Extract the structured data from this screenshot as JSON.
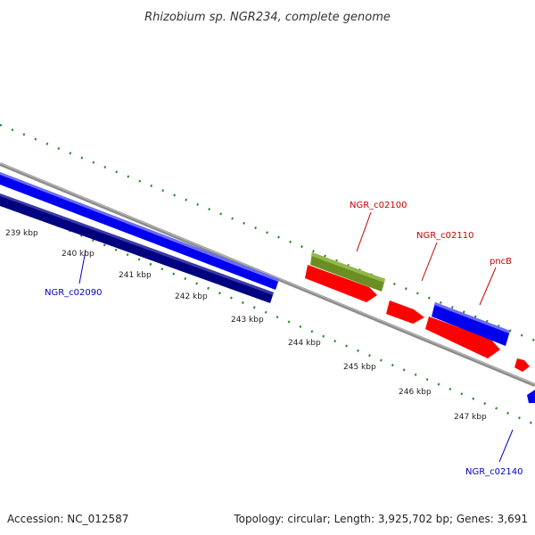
{
  "title": "Rhizobium sp. NGR234, complete genome",
  "footer": {
    "accession": "Accession: NC_012587",
    "topology": "Topology: circular; Length: 3,925,702 bp; Genes: 3,691"
  },
  "tick_labels": [
    "239 kbp",
    "240 kbp",
    "241 kbp",
    "242 kbp",
    "243 kbp",
    "244 kbp",
    "245 kbp",
    "246 kbp",
    "247 kbp"
  ],
  "gene_labels": [
    {
      "text": "NGR_c02090",
      "color": "#0000cc"
    },
    {
      "text": "NGR_c02100",
      "color": "#cc0000"
    },
    {
      "text": "NGR_c02110",
      "color": "#cc0000"
    },
    {
      "text": "pncB",
      "color": "#cc0000"
    },
    {
      "text": "NGR_c02140",
      "color": "#0000cc"
    }
  ],
  "colors": {
    "backbone": "#8c8c8c",
    "dots": "#2a8a2a",
    "forward_cds": "#ff0000",
    "reverse_cds": "#0000ee",
    "reverse_cds_dark": "#000080",
    "rna": "#6b8e23"
  }
}
